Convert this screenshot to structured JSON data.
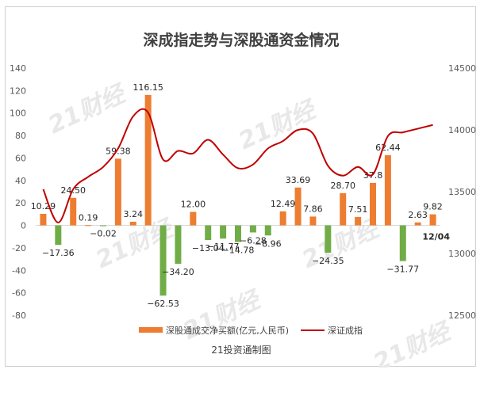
{
  "chart_data": {
    "type": "bar",
    "title": "深成指走势与深股通资金情况",
    "credit": "21投资通制图",
    "watermark": "21财经",
    "last_date_label": "12/04",
    "ylim_left": [
      -80,
      140
    ],
    "yticks_left": [
      140,
      120,
      100,
      80,
      60,
      40,
      20,
      0,
      -20,
      -40,
      -60,
      -80
    ],
    "ylim_right": [
      12500,
      14500
    ],
    "yticks_right": [
      14500,
      14000,
      13500,
      13000,
      12500
    ],
    "grid": false,
    "legend_position": "bottom",
    "series": [
      {
        "name": "深股通成交净买额(亿元,人民币)",
        "type": "bar",
        "values": [
          10.29,
          -17.36,
          24.5,
          0.19,
          -0.02,
          59.38,
          3.24,
          116.15,
          -62.53,
          -34.2,
          12.0,
          -13.04,
          -11.77,
          -14.78,
          -6.28,
          -8.96,
          12.49,
          33.69,
          7.86,
          -24.35,
          28.7,
          7.51,
          37.8,
          62.44,
          -31.77,
          2.63,
          9.82
        ],
        "labels": [
          "10.29",
          "−17.36",
          "24.50",
          "0.19",
          "−0.02",
          "59.38",
          "3.24",
          "116.15",
          "−62.53",
          "−34.20",
          "12.00",
          "−13.04",
          "−11.77",
          "−14.78",
          "−6.28",
          "−8.96",
          "12.49",
          "33.69",
          "7.86",
          "−24.35",
          "28.70",
          "7.51",
          "37.8",
          "62.44",
          "−31.77",
          "2.63",
          "9.82"
        ]
      },
      {
        "name": "深证成指",
        "type": "line",
        "values": [
          13520,
          13250,
          13520,
          13620,
          13700,
          13850,
          14110,
          14140,
          13760,
          13830,
          13810,
          13920,
          13800,
          13690,
          13720,
          13850,
          13910,
          14000,
          13970,
          13710,
          13630,
          13700,
          13640,
          13950,
          13980,
          14010,
          14040
        ]
      }
    ],
    "colors": {
      "positive": "#ed7d31",
      "negative": "#70ad47",
      "line": "#c00000"
    },
    "label_offsets_note": ""
  }
}
